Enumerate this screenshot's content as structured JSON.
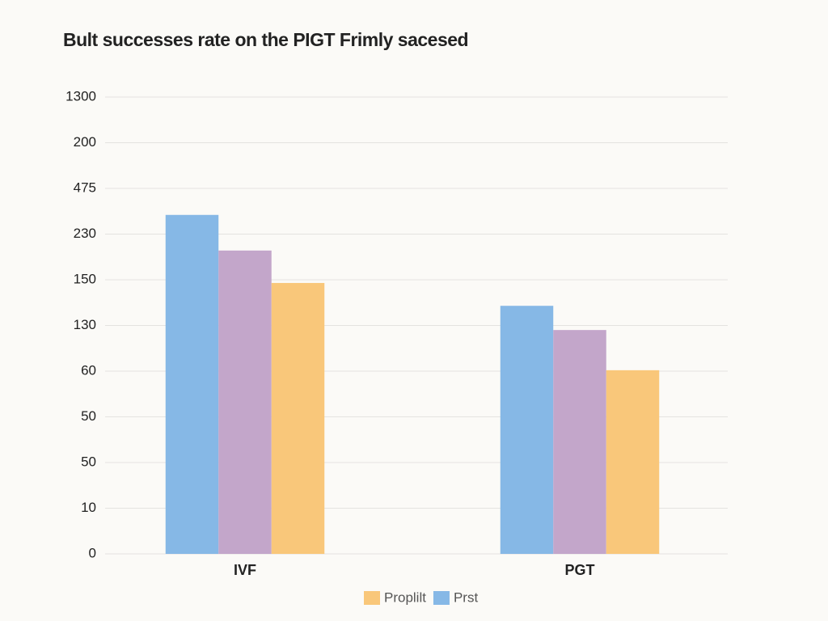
{
  "chart_data": {
    "type": "bar",
    "title": "Bult successes rate on the PIGT Frimly sacesed",
    "categories": [
      "IVF",
      "PGT"
    ],
    "series": [
      {
        "name": "Prst",
        "color": "#86b8e6",
        "values": [
          7.42,
          5.43
        ]
      },
      {
        "color": "#c3a6ca",
        "values": [
          6.64,
          4.9
        ]
      },
      {
        "name": "Proplilt",
        "color": "#f9c77a",
        "values": [
          5.93,
          4.02
        ]
      }
    ],
    "ylim": [
      0,
      10
    ],
    "yticks": [
      {
        "value": 0,
        "label": "0"
      },
      {
        "value": 1,
        "label": "10"
      },
      {
        "value": 2,
        "label": "50"
      },
      {
        "value": 3,
        "label": "50"
      },
      {
        "value": 4,
        "label": "60"
      },
      {
        "value": 5,
        "label": "130"
      },
      {
        "value": 6,
        "label": "150"
      },
      {
        "value": 7,
        "label": "230"
      },
      {
        "value": 8,
        "label": "475"
      },
      {
        "value": 9,
        "label": "200"
      },
      {
        "value": 10,
        "label": "1300"
      }
    ],
    "grid": true
  }
}
